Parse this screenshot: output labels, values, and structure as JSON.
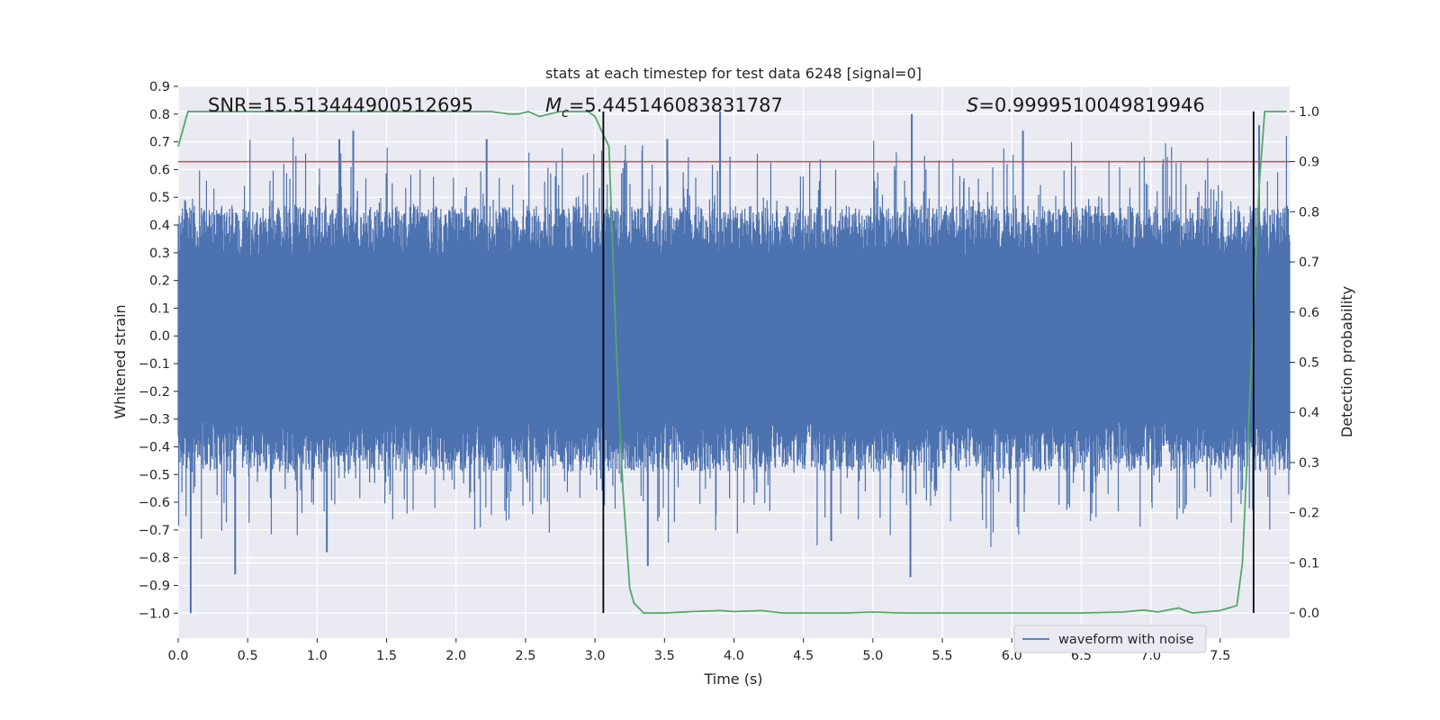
{
  "chart_data": {
    "type": "line",
    "title": "stats at each timestep for test data 6248 [signal=0]",
    "xlabel": "Time (s)",
    "ylabel": "Whitened strain",
    "y2label": "Detection probability",
    "xlim": [
      0.0,
      8.0
    ],
    "ylim": [
      -1.09,
      0.9
    ],
    "y2lim": [
      -0.05,
      1.05
    ],
    "xticks": [
      0.0,
      0.5,
      1.0,
      1.5,
      2.0,
      2.5,
      3.0,
      3.5,
      4.0,
      4.5,
      5.0,
      5.5,
      6.0,
      6.5,
      7.0,
      7.5
    ],
    "xtick_labels": [
      "0.0",
      "0.5",
      "1.0",
      "1.5",
      "2.0",
      "2.5",
      "3.0",
      "3.5",
      "4.0",
      "4.5",
      "5.0",
      "5.5",
      "6.0",
      "6.5",
      "7.0",
      "7.5"
    ],
    "yticks": [
      0.9,
      0.8,
      0.7,
      0.6,
      0.5,
      0.4,
      0.3,
      0.2,
      0.1,
      0.0,
      -0.1,
      -0.2,
      -0.3,
      -0.4,
      -0.5,
      -0.6,
      -0.7,
      -0.8,
      -0.9,
      -1.0
    ],
    "ytick_labels": [
      "0.9",
      "0.8",
      "0.7",
      "0.6",
      "0.5",
      "0.4",
      "0.3",
      "0.2",
      "0.1",
      "0.0",
      "−0.1",
      "−0.2",
      "−0.3",
      "−0.4",
      "−0.5",
      "−0.6",
      "−0.7",
      "−0.8",
      "−0.9",
      "−1.0"
    ],
    "y2ticks": [
      1.0,
      0.9,
      0.8,
      0.7,
      0.6,
      0.5,
      0.4,
      0.3,
      0.2,
      0.1,
      0.0
    ],
    "y2tick_labels": [
      "1.0",
      "0.9",
      "0.8",
      "0.7",
      "0.6",
      "0.5",
      "0.4",
      "0.3",
      "0.2",
      "0.1",
      "0.0"
    ],
    "annotations": {
      "snr": "SNR=15.513444900512695",
      "mc_symbol": "M",
      "mc_sub": "c",
      "mc_value": "=5.445146083831787",
      "s_symbol": "S",
      "s_value": "=0.9999510049819946"
    },
    "threshold": {
      "axis": "y2",
      "value": 0.9
    },
    "vlines_x": [
      3.06,
      7.74
    ],
    "legend": {
      "label": "waveform with noise",
      "placement": "lower-center-right"
    },
    "series": [
      {
        "name": "waveform with noise",
        "axis": "y",
        "kind": "noise",
        "x_range": [
          0.0,
          8.0
        ],
        "band_low": -0.31,
        "band_high": 0.29,
        "spikes": [
          {
            "x": 0.09,
            "y": -1.0
          },
          {
            "x": 0.41,
            "y": -0.86
          },
          {
            "x": 1.07,
            "y": -0.78
          },
          {
            "x": 1.16,
            "y": 0.71
          },
          {
            "x": 1.26,
            "y": 0.74
          },
          {
            "x": 2.22,
            "y": 0.71
          },
          {
            "x": 3.38,
            "y": -0.83
          },
          {
            "x": 3.52,
            "y": 0.71
          },
          {
            "x": 3.9,
            "y": 0.81
          },
          {
            "x": 4.7,
            "y": -0.74
          },
          {
            "x": 5.28,
            "y": 0.8
          },
          {
            "x": 5.27,
            "y": -0.87
          },
          {
            "x": 6.08,
            "y": 0.74
          },
          {
            "x": 7.78,
            "y": 0.76
          }
        ]
      },
      {
        "name": "detection probability",
        "axis": "y2",
        "x": [
          0.0,
          0.07,
          0.2,
          0.5,
          1.0,
          1.5,
          2.0,
          2.25,
          2.38,
          2.45,
          2.52,
          2.6,
          2.75,
          2.95,
          3.0,
          3.05,
          3.1,
          3.15,
          3.2,
          3.25,
          3.28,
          3.35,
          3.5,
          3.7,
          3.9,
          4.0,
          4.2,
          4.35,
          4.6,
          4.8,
          5.0,
          5.2,
          5.5,
          6.0,
          6.5,
          6.8,
          6.95,
          7.05,
          7.2,
          7.3,
          7.5,
          7.62,
          7.66,
          7.7,
          7.74,
          7.78,
          7.82,
          7.9,
          7.98
        ],
        "y": [
          0.93,
          1.0,
          1.0,
          1.0,
          1.0,
          1.0,
          1.0,
          1.0,
          0.995,
          0.995,
          1.0,
          0.99,
          1.0,
          1.0,
          0.99,
          0.96,
          0.93,
          0.55,
          0.25,
          0.05,
          0.02,
          0.0,
          0.0,
          0.003,
          0.005,
          0.003,
          0.005,
          0.0,
          0.0,
          0.0,
          0.002,
          0.0,
          0.0,
          0.0,
          0.0,
          0.002,
          0.006,
          0.002,
          0.01,
          0.0,
          0.005,
          0.015,
          0.1,
          0.35,
          0.6,
          0.85,
          1.0,
          1.0,
          1.0
        ]
      }
    ]
  }
}
